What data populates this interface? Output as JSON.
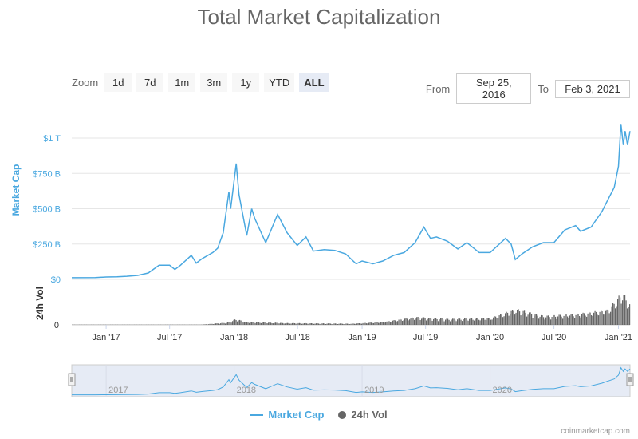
{
  "title": "Total Market Capitalization",
  "zoom": {
    "label": "Zoom",
    "buttons": [
      "1d",
      "7d",
      "1m",
      "3m",
      "1y",
      "YTD",
      "ALL"
    ],
    "active": "ALL"
  },
  "range": {
    "from_label": "From",
    "from_value": "Sep 25, 2016",
    "to_label": "To",
    "to_value": "Feb 3, 2021"
  },
  "legend": {
    "market_cap": "Market Cap",
    "volume": "24h Vol"
  },
  "credits": "coinmarketcap.com",
  "colors": {
    "line": "#4aa8e0",
    "volume": "#666666",
    "axis_label": "#4aa8e0",
    "navigator_fill": "#e6ebf5"
  },
  "chart_data": {
    "type": "line",
    "title": "Total Market Capitalization",
    "x_range": [
      "2016-09-25",
      "2021-02-03"
    ],
    "series": [
      {
        "name": "Market Cap",
        "axis": "Market Cap",
        "unit": "USD",
        "points": [
          [
            "2016-09-25",
            12000000000.0
          ],
          [
            "2016-12-01",
            13000000000.0
          ],
          [
            "2017-01-01",
            17000000000.0
          ],
          [
            "2017-02-01",
            18000000000.0
          ],
          [
            "2017-03-01",
            22000000000.0
          ],
          [
            "2017-04-01",
            28000000000.0
          ],
          [
            "2017-05-01",
            45000000000.0
          ],
          [
            "2017-06-01",
            100000000000.0
          ],
          [
            "2017-07-01",
            100000000000.0
          ],
          [
            "2017-07-16",
            70000000000.0
          ],
          [
            "2017-08-01",
            100000000000.0
          ],
          [
            "2017-09-01",
            170000000000.0
          ],
          [
            "2017-09-15",
            115000000000.0
          ],
          [
            "2017-10-01",
            145000000000.0
          ],
          [
            "2017-11-01",
            190000000000.0
          ],
          [
            "2017-11-15",
            220000000000.0
          ],
          [
            "2017-12-01",
            330000000000.0
          ],
          [
            "2017-12-17",
            620000000000.0
          ],
          [
            "2017-12-22",
            500000000000.0
          ],
          [
            "2018-01-07",
            820000000000.0
          ],
          [
            "2018-01-15",
            600000000000.0
          ],
          [
            "2018-02-06",
            310000000000.0
          ],
          [
            "2018-02-20",
            500000000000.0
          ],
          [
            "2018-03-01",
            430000000000.0
          ],
          [
            "2018-04-01",
            260000000000.0
          ],
          [
            "2018-05-05",
            460000000000.0
          ],
          [
            "2018-06-01",
            330000000000.0
          ],
          [
            "2018-06-30",
            240000000000.0
          ],
          [
            "2018-07-25",
            300000000000.0
          ],
          [
            "2018-08-15",
            200000000000.0
          ],
          [
            "2018-09-15",
            210000000000.0
          ],
          [
            "2018-10-15",
            205000000000.0
          ],
          [
            "2018-11-15",
            180000000000.0
          ],
          [
            "2018-12-15",
            110000000000.0
          ],
          [
            "2019-01-01",
            130000000000.0
          ],
          [
            "2019-02-01",
            110000000000.0
          ],
          [
            "2019-03-01",
            130000000000.0
          ],
          [
            "2019-04-01",
            170000000000.0
          ],
          [
            "2019-05-01",
            190000000000.0
          ],
          [
            "2019-06-01",
            260000000000.0
          ],
          [
            "2019-06-26",
            370000000000.0
          ],
          [
            "2019-07-15",
            290000000000.0
          ],
          [
            "2019-08-01",
            300000000000.0
          ],
          [
            "2019-09-01",
            270000000000.0
          ],
          [
            "2019-10-01",
            215000000000.0
          ],
          [
            "2019-10-27",
            260000000000.0
          ],
          [
            "2019-12-01",
            190000000000.0
          ],
          [
            "2020-01-01",
            190000000000.0
          ],
          [
            "2020-02-14",
            290000000000.0
          ],
          [
            "2020-03-01",
            250000000000.0
          ],
          [
            "2020-03-13",
            140000000000.0
          ],
          [
            "2020-04-01",
            180000000000.0
          ],
          [
            "2020-05-01",
            230000000000.0
          ],
          [
            "2020-06-01",
            260000000000.0
          ],
          [
            "2020-07-01",
            260000000000.0
          ],
          [
            "2020-08-01",
            350000000000.0
          ],
          [
            "2020-09-01",
            380000000000.0
          ],
          [
            "2020-09-15",
            340000000000.0
          ],
          [
            "2020-10-15",
            370000000000.0
          ],
          [
            "2020-11-15",
            480000000000.0
          ],
          [
            "2020-12-01",
            560000000000.0
          ],
          [
            "2020-12-20",
            650000000000.0
          ],
          [
            "2021-01-01",
            800000000000.0
          ],
          [
            "2021-01-08",
            1100000000000.0
          ],
          [
            "2021-01-15",
            950000000000.0
          ],
          [
            "2021-01-20",
            1050000000000.0
          ],
          [
            "2021-01-27",
            950000000000.0
          ],
          [
            "2021-02-03",
            1050000000000.0
          ]
        ]
      },
      {
        "name": "24h Vol",
        "axis": "24h Vol",
        "unit": "USD",
        "points": [
          [
            "2016-09-25",
            500000000.0
          ],
          [
            "2017-06-01",
            1000000000.0
          ],
          [
            "2017-10-01",
            3000000000.0
          ],
          [
            "2017-12-15",
            25000000000.0
          ],
          [
            "2018-01-05",
            60000000000.0
          ],
          [
            "2018-02-01",
            30000000000.0
          ],
          [
            "2018-06-01",
            18000000000.0
          ],
          [
            "2018-12-01",
            12000000000.0
          ],
          [
            "2019-03-01",
            30000000000.0
          ],
          [
            "2019-06-01",
            80000000000.0
          ],
          [
            "2019-09-01",
            60000000000.0
          ],
          [
            "2020-01-01",
            70000000000.0
          ],
          [
            "2020-03-13",
            160000000000.0
          ],
          [
            "2020-06-01",
            90000000000.0
          ],
          [
            "2020-09-01",
            110000000000.0
          ],
          [
            "2020-12-01",
            150000000000.0
          ],
          [
            "2021-01-11",
            330000000000.0
          ],
          [
            "2021-02-03",
            200000000000.0
          ]
        ]
      }
    ],
    "y_axis_market_cap": {
      "label": "Market Cap",
      "ticks": [
        "$0",
        "$250 B",
        "$500 B",
        "$750 B",
        "$1 T"
      ],
      "range": [
        0,
        1000000000000.0
      ]
    },
    "y_axis_volume": {
      "label": "24h Vol",
      "ticks": [
        "0"
      ]
    },
    "x_ticks": [
      "Jan '17",
      "Jul '17",
      "Jan '18",
      "Jul '18",
      "Jan '19",
      "Jul '19",
      "Jan '20",
      "Jul '20",
      "Jan '21"
    ],
    "navigator_ticks": [
      "2017",
      "2018",
      "2019",
      "2020"
    ],
    "grid": true,
    "legend_position": "bottom"
  }
}
